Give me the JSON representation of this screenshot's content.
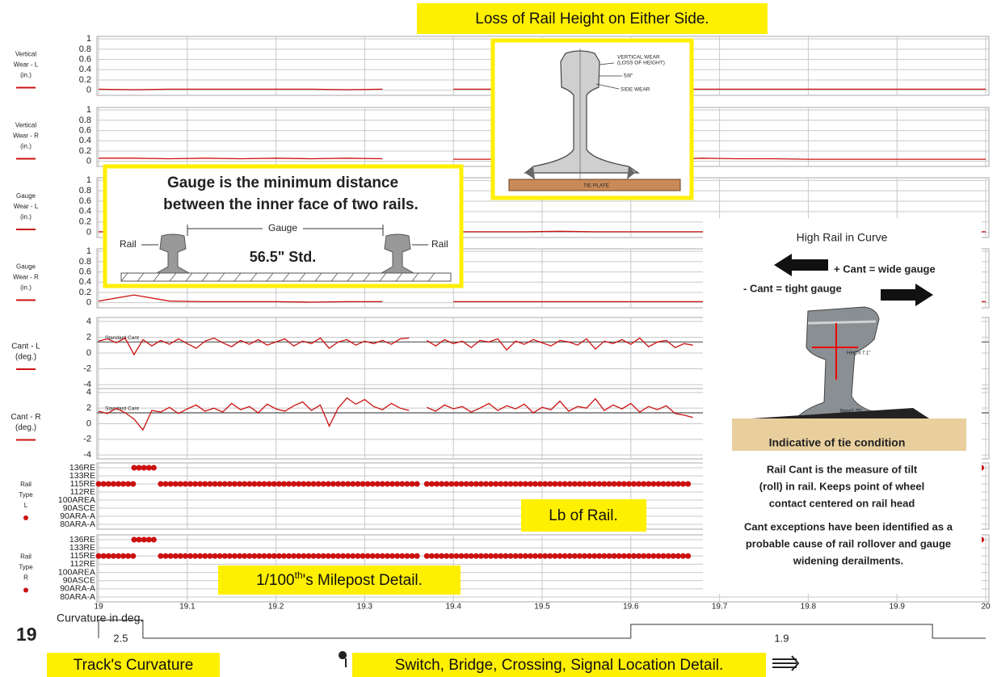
{
  "chart_data": [
    {
      "type": "line",
      "label_lines": [
        "Vertical",
        "Wear - L",
        "(in.)"
      ],
      "color": "#cc1111",
      "x": [
        19,
        19.04,
        19.08,
        19.12,
        19.16,
        19.2,
        19.24,
        19.28,
        19.32,
        19.36,
        19.4,
        19.44,
        19.48,
        19.52,
        19.56,
        19.6,
        19.64,
        19.68,
        19.72,
        19.76,
        19.8,
        19.84,
        19.88,
        19.92,
        19.96,
        20
      ],
      "values": [
        0.02,
        0.01,
        0.02,
        0.02,
        0.02,
        0.02,
        0.02,
        0.01,
        0.02,
        null,
        0.02,
        0.02,
        0.03,
        0.02,
        0.02,
        0.02,
        0.02,
        0.02,
        0.02,
        0.02,
        0.02,
        0.02,
        0.02,
        0.02,
        0.02,
        0.02
      ],
      "xlim": [
        19,
        20
      ],
      "xticks": [
        19,
        19.1,
        19.2,
        19.3,
        19.4,
        19.5,
        19.6,
        19.7,
        19.8,
        19.9,
        20
      ],
      "ylim": [
        -0.1,
        1.05
      ],
      "yticks": [
        0,
        0.2,
        0.4,
        0.6,
        0.8,
        1
      ]
    },
    {
      "type": "line",
      "label_lines": [
        "Vertical",
        "Wear - R",
        "(in.)"
      ],
      "color": "#cc1111",
      "x": [
        19,
        19.04,
        19.08,
        19.12,
        19.16,
        19.2,
        19.24,
        19.28,
        19.32,
        19.36,
        19.4,
        19.44,
        19.48,
        19.52,
        19.56,
        19.6,
        19.64,
        19.68,
        19.72,
        19.76,
        19.8,
        19.84,
        19.88,
        19.92,
        19.96,
        20
      ],
      "values": [
        0.06,
        0.06,
        0.05,
        0.06,
        0.05,
        0.06,
        0.05,
        0.06,
        0.05,
        null,
        0.04,
        0.04,
        0.05,
        0.04,
        0.05,
        0.04,
        0.04,
        0.06,
        0.05,
        0.05,
        0.04,
        0.04,
        0.04,
        0.04,
        0.04,
        0.04
      ],
      "xlim": [
        19,
        20
      ],
      "xticks": [
        19,
        19.1,
        19.2,
        19.3,
        19.4,
        19.5,
        19.6,
        19.7,
        19.8,
        19.9,
        20
      ],
      "ylim": [
        -0.1,
        1.05
      ],
      "yticks": [
        0,
        0.2,
        0.4,
        0.6,
        0.8,
        1
      ]
    },
    {
      "type": "line",
      "label_lines": [
        "Gauge",
        "Wear - L",
        "(in.)"
      ],
      "color": "#cc1111",
      "x": [
        19,
        19.04,
        19.08,
        19.12,
        19.16,
        19.2,
        19.24,
        19.28,
        19.32,
        19.36,
        19.4,
        19.44,
        19.48,
        19.52,
        19.56,
        19.6,
        19.64,
        19.68,
        19.72,
        19.76,
        19.8,
        19.84,
        19.88,
        19.92,
        19.96,
        20
      ],
      "values": [
        0.01,
        0.01,
        0.01,
        0.01,
        0.01,
        0.01,
        0.01,
        0.01,
        0.01,
        null,
        0.01,
        0.01,
        0.01,
        0.02,
        0.01,
        0.01,
        0.01,
        0.01,
        0.01,
        0.01,
        0.01,
        0.01,
        0.01,
        0.01,
        0.01,
        0.01
      ],
      "xlim": [
        19,
        20
      ],
      "xticks": [
        19,
        19.1,
        19.2,
        19.3,
        19.4,
        19.5,
        19.6,
        19.7,
        19.8,
        19.9,
        20
      ],
      "ylim": [
        -0.1,
        1.05
      ],
      "yticks": [
        0,
        0.2,
        0.4,
        0.6,
        0.8,
        1
      ]
    },
    {
      "type": "line",
      "label_lines": [
        "Gauge",
        "Wear - R",
        "(in.)"
      ],
      "color": "#cc1111",
      "x": [
        19,
        19.04,
        19.08,
        19.12,
        19.16,
        19.2,
        19.24,
        19.28,
        19.32,
        19.36,
        19.4,
        19.44,
        19.48,
        19.52,
        19.56,
        19.6,
        19.64,
        19.68,
        19.72,
        19.76,
        19.8,
        19.84,
        19.88,
        19.92,
        19.96,
        20
      ],
      "values": [
        0.03,
        0.15,
        0.03,
        0.02,
        0.02,
        0.02,
        0.01,
        0.02,
        0.02,
        null,
        0.02,
        0.02,
        0.02,
        0.02,
        0.02,
        0.02,
        0.02,
        0.02,
        0.02,
        0.02,
        0.02,
        0.02,
        0.02,
        0.02,
        0.02,
        0.02
      ],
      "xlim": [
        19,
        20
      ],
      "xticks": [
        19,
        19.1,
        19.2,
        19.3,
        19.4,
        19.5,
        19.6,
        19.7,
        19.8,
        19.9,
        20
      ],
      "ylim": [
        -0.1,
        1.05
      ],
      "yticks": [
        0,
        0.2,
        0.4,
        0.6,
        0.8,
        1
      ]
    },
    {
      "type": "line",
      "label_lines": [
        "Cant - L",
        "(deg.)"
      ],
      "color": "#cc1111",
      "reference": {
        "label": "Standard Cant",
        "value": 1.4
      },
      "x": [
        19,
        19.01,
        19.02,
        19.03,
        19.04,
        19.05,
        19.06,
        19.07,
        19.08,
        19.09,
        19.1,
        19.11,
        19.12,
        19.13,
        19.14,
        19.15,
        19.16,
        19.17,
        19.18,
        19.19,
        19.2,
        19.21,
        19.22,
        19.23,
        19.24,
        19.25,
        19.26,
        19.27,
        19.28,
        19.29,
        19.3,
        19.31,
        19.32,
        19.33,
        19.34,
        19.35,
        19.36,
        19.37,
        19.38,
        19.39,
        19.4,
        19.41,
        19.42,
        19.43,
        19.44,
        19.45,
        19.46,
        19.47,
        19.48,
        19.49,
        19.5,
        19.51,
        19.52,
        19.53,
        19.54,
        19.55,
        19.56,
        19.57,
        19.58,
        19.59,
        19.6,
        19.61,
        19.62,
        19.63,
        19.64,
        19.65,
        19.66,
        19.67
      ],
      "values": [
        1.5,
        1.8,
        1.3,
        1.9,
        -0.2,
        1.7,
        0.9,
        1.6,
        1.1,
        1.8,
        1.2,
        0.6,
        1.5,
        1.9,
        1.3,
        0.8,
        1.6,
        1.1,
        1.7,
        1.0,
        1.4,
        1.8,
        0.9,
        1.5,
        1.2,
        1.9,
        0.6,
        1.4,
        1.7,
        1.0,
        1.5,
        1.2,
        1.6,
        1.1,
        1.8,
        1.9,
        null,
        1.6,
        0.9,
        1.7,
        1.2,
        1.5,
        0.7,
        1.6,
        1.4,
        1.8,
        0.4,
        1.5,
        1.1,
        1.7,
        1.3,
        0.9,
        1.6,
        1.4,
        1.0,
        1.8,
        0.5,
        1.5,
        1.2,
        1.7,
        1.1,
        1.9,
        0.8,
        1.4,
        1.6,
        0.7,
        1.2,
        1.0
      ],
      "xlim": [
        19,
        20
      ],
      "xticks": [
        19,
        19.1,
        19.2,
        19.3,
        19.4,
        19.5,
        19.6,
        19.7,
        19.8,
        19.9,
        20
      ],
      "ylim": [
        -4.5,
        4.5
      ],
      "yticks": [
        4,
        2,
        0,
        -2,
        -4
      ]
    },
    {
      "type": "line",
      "label_lines": [
        "Cant - R",
        "(deg.)"
      ],
      "color": "#cc1111",
      "reference": {
        "label": "Standard Cant",
        "value": 1.4
      },
      "x": [
        19,
        19.01,
        19.02,
        19.03,
        19.04,
        19.05,
        19.06,
        19.07,
        19.08,
        19.09,
        19.1,
        19.11,
        19.12,
        19.13,
        19.14,
        19.15,
        19.16,
        19.17,
        19.18,
        19.19,
        19.2,
        19.21,
        19.22,
        19.23,
        19.24,
        19.25,
        19.26,
        19.27,
        19.28,
        19.29,
        19.3,
        19.31,
        19.32,
        19.33,
        19.34,
        19.35,
        19.36,
        19.37,
        19.38,
        19.39,
        19.4,
        19.41,
        19.42,
        19.43,
        19.44,
        19.45,
        19.46,
        19.47,
        19.48,
        19.49,
        19.5,
        19.51,
        19.52,
        19.53,
        19.54,
        19.55,
        19.56,
        19.57,
        19.58,
        19.59,
        19.6,
        19.61,
        19.62,
        19.63,
        19.64,
        19.65,
        19.66,
        19.67
      ],
      "values": [
        1.6,
        1.3,
        2.0,
        1.4,
        0.6,
        -0.8,
        1.7,
        1.5,
        2.1,
        1.3,
        1.9,
        2.4,
        1.6,
        2.0,
        1.5,
        2.6,
        1.8,
        2.2,
        1.4,
        2.5,
        1.9,
        1.6,
        2.3,
        2.8,
        1.7,
        2.4,
        -0.3,
        2.0,
        3.3,
        2.5,
        3.1,
        2.2,
        1.8,
        2.6,
        2.0,
        1.7,
        null,
        2.1,
        1.6,
        2.4,
        1.9,
        2.2,
        1.5,
        2.0,
        2.6,
        1.7,
        2.3,
        1.9,
        2.5,
        1.4,
        2.1,
        1.8,
        2.9,
        1.6,
        2.2,
        2.0,
        3.2,
        1.7,
        2.4,
        1.9,
        2.6,
        1.5,
        2.2,
        1.8,
        2.3,
        1.3,
        1.1,
        0.8
      ],
      "xlim": [
        19,
        20
      ],
      "xticks": [
        19,
        19.1,
        19.2,
        19.3,
        19.4,
        19.5,
        19.6,
        19.7,
        19.8,
        19.9,
        20
      ],
      "ylim": [
        -4.5,
        4.5
      ],
      "yticks": [
        4,
        2,
        0,
        -2,
        -4
      ]
    },
    {
      "type": "rail_type",
      "label_lines": [
        "Rail",
        "Type",
        "L"
      ],
      "color": "#cc1111",
      "categories": [
        "136RE",
        "133RE",
        "115RE",
        "112RE",
        "100AREA",
        "90ASCE",
        "90ARA-A",
        "80ARA-A"
      ],
      "segments": [
        {
          "start": 19,
          "end": 19.04,
          "rail": "115RE"
        },
        {
          "start": 19.04,
          "end": 19.065,
          "rail": "136RE"
        },
        {
          "start": 19.07,
          "end": 19.36,
          "rail": "115RE"
        },
        {
          "start": 19.37,
          "end": 19.67,
          "rail": "115RE"
        },
        {
          "start": 19.995,
          "end": 20,
          "rail": "136RE"
        }
      ],
      "xlim": [
        19,
        20
      ],
      "xticks": [
        19,
        19.1,
        19.2,
        19.3,
        19.4,
        19.5,
        19.6,
        19.7,
        19.8,
        19.9,
        20
      ]
    },
    {
      "type": "rail_type",
      "label_lines": [
        "Rail",
        "Type",
        "R"
      ],
      "color": "#cc1111",
      "categories": [
        "136RE",
        "133RE",
        "115RE",
        "112RE",
        "100AREA",
        "90ASCE",
        "90ARA-A",
        "80ARA-A"
      ],
      "segments": [
        {
          "start": 19,
          "end": 19.04,
          "rail": "115RE"
        },
        {
          "start": 19.04,
          "end": 19.065,
          "rail": "136RE"
        },
        {
          "start": 19.07,
          "end": 19.36,
          "rail": "115RE"
        },
        {
          "start": 19.37,
          "end": 19.67,
          "rail": "115RE"
        },
        {
          "start": 19.995,
          "end": 20,
          "rail": "136RE"
        }
      ],
      "xlim": [
        19,
        20
      ],
      "xticks": [
        19,
        19.1,
        19.2,
        19.3,
        19.4,
        19.5,
        19.6,
        19.7,
        19.8,
        19.9,
        20
      ],
      "show_xticklabels": true
    },
    {
      "type": "curvature",
      "label": "Curvature in deg.",
      "color": "#333333",
      "segments": [
        {
          "start": 19,
          "end": 19.05,
          "value": 2.5
        },
        {
          "start": 19.6,
          "end": 19.94,
          "value": 1.9
        }
      ],
      "xlim": [
        19,
        20
      ]
    }
  ],
  "milepost": "19",
  "annotations": {
    "rail_height": {
      "title": "Loss of Rail Height on Either Side.",
      "vertical_wear": "VERTICAL WEAR",
      "loss": "(LOSS OF HEIGHT)",
      "dimension": "5/8\"",
      "side_wear": "SIDE WEAR",
      "tie_plate": "TIE PLATE"
    },
    "gauge": {
      "title_lines": [
        "Gauge is the minimum distance",
        "between the inner face of two rails."
      ],
      "rail_left": "Rail",
      "gauge": "Gauge",
      "rail_right": "Rail",
      "standard": "56.5\" Std."
    },
    "cant": {
      "title": "High Rail in Curve",
      "plus": "+ Cant = wide gauge",
      "minus": "- Cant = tight gauge",
      "height": "Height 7.1\"",
      "base": "Base2.75\"",
      "tie": "Indicative of tie condition",
      "definition_lines": [
        "Rail Cant is the measure of tilt",
        "(roll) in rail. Keeps point of wheel",
        "contact centered on rail head"
      ],
      "exception_lines": [
        "Cant exceptions have been identified as a",
        "probable cause of rail rollover and gauge",
        "widening derailments."
      ]
    },
    "rail_weight": "Lb of Rail.",
    "milepost_detail": {
      "prefix": "1/100",
      "sup": "th",
      "suffix": "'s Milepost Detail."
    },
    "curvature": "Track's Curvature",
    "locations": "Switch, Bridge, Crossing, Signal Location Detail."
  }
}
